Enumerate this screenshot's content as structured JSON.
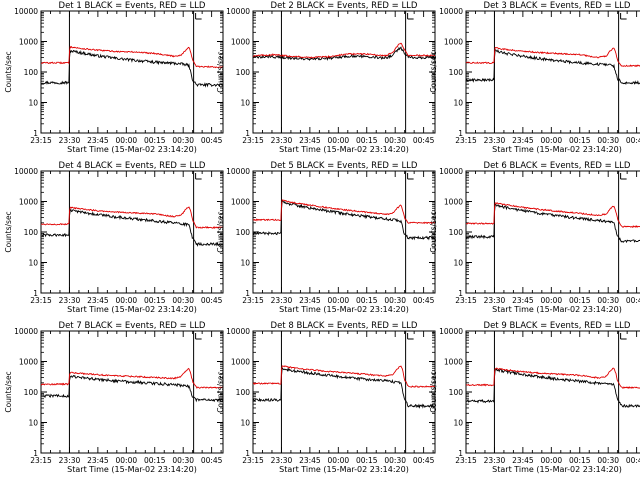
{
  "figure": {
    "x_tick_labels": [
      "23:15",
      "23:30",
      "23:45",
      "00:00",
      "00:15",
      "00:30",
      "00:45"
    ],
    "y_tick_labels": [
      "1",
      "10",
      "100",
      "1000",
      "10000"
    ],
    "x_label": "Start Time (15-Mar-02 23:14:20)",
    "y_label": "Counts/sec",
    "colors": {
      "events": "#000000",
      "lld": "#e00000"
    }
  },
  "chart_data": [
    {
      "type": "line",
      "title": "Det 1 BLACK = Events, RED = LLD",
      "xlabel": "Start Time (15-Mar-02 23:14:20)",
      "ylabel": "Counts/sec",
      "x_unit": "minutes after 23:15",
      "xlim": [
        0,
        96
      ],
      "ylim": [
        1,
        10000
      ],
      "y_scale": "log",
      "markers_at": [
        15,
        80.5
      ],
      "series": [
        {
          "name": "Events",
          "color": "#000000",
          "x": [
            0,
            14.9,
            15.1,
            20,
            30,
            40,
            50,
            60,
            65,
            70,
            75,
            78,
            80,
            82,
            96
          ],
          "y": [
            45,
            45,
            500,
            440,
            340,
            280,
            240,
            210,
            200,
            195,
            180,
            165,
            55,
            38,
            38
          ]
        },
        {
          "name": "LLD",
          "color": "#e00000",
          "x": [
            0,
            14.9,
            15.1,
            20,
            30,
            40,
            50,
            60,
            70,
            74,
            76,
            78,
            79,
            80,
            82,
            96
          ],
          "y": [
            200,
            200,
            680,
            600,
            520,
            470,
            450,
            410,
            330,
            360,
            500,
            650,
            450,
            240,
            150,
            145
          ]
        }
      ]
    },
    {
      "type": "line",
      "title": "Det 2 BLACK = Events, RED = LLD",
      "xlabel": "Start Time (15-Mar-02 23:14:20)",
      "ylabel": "Counts/sec",
      "x_unit": "minutes after 23:15",
      "xlim": [
        0,
        96
      ],
      "ylim": [
        1,
        10000
      ],
      "y_scale": "log",
      "markers_at": [
        15,
        80.5
      ],
      "series": [
        {
          "name": "Events",
          "color": "#000000",
          "x": [
            0,
            10,
            20,
            30,
            40,
            50,
            60,
            70,
            74,
            76,
            78,
            80,
            82,
            96
          ],
          "y": [
            300,
            320,
            290,
            260,
            280,
            330,
            330,
            290,
            370,
            520,
            620,
            420,
            300,
            300
          ]
        },
        {
          "name": "LLD",
          "color": "#e00000",
          "x": [
            0,
            10,
            20,
            30,
            40,
            50,
            60,
            70,
            74,
            76,
            78,
            80,
            82,
            96
          ],
          "y": [
            340,
            370,
            330,
            300,
            320,
            390,
            390,
            340,
            450,
            700,
            900,
            520,
            350,
            350
          ]
        }
      ]
    },
    {
      "type": "line",
      "title": "Det 3 BLACK = Events, RED = LLD",
      "xlabel": "Start Time (15-Mar-02 23:14:20)",
      "ylabel": "Counts/sec",
      "x_unit": "minutes after 23:15",
      "xlim": [
        0,
        96
      ],
      "ylim": [
        1,
        10000
      ],
      "y_scale": "log",
      "markers_at": [
        15,
        80.5
      ],
      "series": [
        {
          "name": "Events",
          "color": "#000000",
          "x": [
            0,
            14.9,
            15.1,
            20,
            30,
            40,
            50,
            60,
            70,
            75,
            78,
            80,
            82,
            96
          ],
          "y": [
            55,
            55,
            500,
            420,
            330,
            270,
            230,
            200,
            180,
            170,
            160,
            60,
            45,
            45
          ]
        },
        {
          "name": "LLD",
          "color": "#e00000",
          "x": [
            0,
            14.9,
            15.1,
            20,
            30,
            40,
            50,
            60,
            70,
            74,
            76,
            78,
            79,
            80,
            82,
            96
          ],
          "y": [
            200,
            200,
            620,
            560,
            480,
            430,
            400,
            370,
            300,
            340,
            480,
            620,
            420,
            230,
            160,
            160
          ]
        }
      ]
    },
    {
      "type": "line",
      "title": "Det 4 BLACK = Events, RED = LLD",
      "xlabel": "Start Time (15-Mar-02 23:14:20)",
      "ylabel": "Counts/sec",
      "x_unit": "minutes after 23:15",
      "xlim": [
        0,
        96
      ],
      "ylim": [
        1,
        10000
      ],
      "y_scale": "log",
      "markers_at": [
        15,
        80.5
      ],
      "series": [
        {
          "name": "Events",
          "color": "#000000",
          "x": [
            0,
            14.9,
            15.1,
            20,
            30,
            40,
            50,
            60,
            70,
            75,
            78,
            80,
            82,
            96
          ],
          "y": [
            80,
            80,
            520,
            460,
            370,
            310,
            270,
            230,
            200,
            185,
            170,
            60,
            40,
            40
          ]
        },
        {
          "name": "LLD",
          "color": "#e00000",
          "x": [
            0,
            14.9,
            15.1,
            20,
            30,
            40,
            50,
            60,
            70,
            74,
            76,
            78,
            79,
            80,
            82,
            96
          ],
          "y": [
            180,
            180,
            640,
            580,
            500,
            450,
            420,
            390,
            320,
            360,
            520,
            680,
            460,
            240,
            140,
            140
          ]
        }
      ]
    },
    {
      "type": "line",
      "title": "Det 5 BLACK = Events, RED = LLD",
      "xlabel": "Start Time (15-Mar-02 23:14:20)",
      "ylabel": "Counts/sec",
      "x_unit": "minutes after 23:15",
      "xlim": [
        0,
        96
      ],
      "ylim": [
        1,
        10000
      ],
      "y_scale": "log",
      "markers_at": [
        15,
        80.5
      ],
      "series": [
        {
          "name": "Events",
          "color": "#000000",
          "x": [
            0,
            14.9,
            15.1,
            20,
            30,
            40,
            50,
            60,
            70,
            75,
            78,
            80,
            82,
            96
          ],
          "y": [
            90,
            90,
            1000,
            820,
            620,
            480,
            390,
            320,
            270,
            250,
            230,
            80,
            65,
            65
          ]
        },
        {
          "name": "LLD",
          "color": "#e00000",
          "x": [
            0,
            14.9,
            15.1,
            20,
            30,
            40,
            50,
            60,
            70,
            74,
            76,
            78,
            79,
            80,
            82,
            96
          ],
          "y": [
            250,
            250,
            1100,
            950,
            760,
            620,
            520,
            440,
            380,
            420,
            600,
            780,
            520,
            280,
            200,
            200
          ]
        }
      ]
    },
    {
      "type": "line",
      "title": "Det 6 BLACK = Events, RED = LLD",
      "xlabel": "Start Time (15-Mar-02 23:14:20)",
      "ylabel": "Counts/sec",
      "x_unit": "minutes after 23:15",
      "xlim": [
        0,
        96
      ],
      "ylim": [
        1,
        10000
      ],
      "y_scale": "log",
      "markers_at": [
        15,
        80.5
      ],
      "series": [
        {
          "name": "Events",
          "color": "#000000",
          "x": [
            0,
            14.9,
            15.1,
            20,
            30,
            40,
            50,
            60,
            70,
            75,
            78,
            80,
            82,
            96
          ],
          "y": [
            70,
            70,
            800,
            660,
            500,
            400,
            330,
            280,
            240,
            220,
            200,
            70,
            50,
            50
          ]
        },
        {
          "name": "LLD",
          "color": "#e00000",
          "x": [
            0,
            14.9,
            15.1,
            20,
            30,
            40,
            50,
            60,
            70,
            74,
            76,
            78,
            79,
            80,
            82,
            96
          ],
          "y": [
            190,
            190,
            900,
            800,
            640,
            540,
            470,
            410,
            350,
            390,
            560,
            720,
            480,
            260,
            150,
            150
          ]
        }
      ]
    },
    {
      "type": "line",
      "title": "Det 7 BLACK = Events, RED = LLD",
      "xlabel": "Start Time (15-Mar-02 23:14:20)",
      "ylabel": "Counts/sec",
      "x_unit": "minutes after 23:15",
      "xlim": [
        0,
        96
      ],
      "ylim": [
        1,
        10000
      ],
      "y_scale": "log",
      "markers_at": [
        15,
        80.5
      ],
      "series": [
        {
          "name": "Events",
          "color": "#000000",
          "x": [
            0,
            14.9,
            15.1,
            20,
            30,
            40,
            50,
            60,
            70,
            75,
            78,
            80,
            82,
            96
          ],
          "y": [
            75,
            75,
            330,
            300,
            260,
            230,
            210,
            190,
            175,
            165,
            155,
            65,
            55,
            55
          ]
        },
        {
          "name": "LLD",
          "color": "#e00000",
          "x": [
            0,
            14.9,
            15.1,
            20,
            30,
            40,
            50,
            60,
            70,
            74,
            76,
            78,
            79,
            80,
            82,
            96
          ],
          "y": [
            180,
            180,
            440,
            410,
            370,
            340,
            320,
            300,
            280,
            320,
            460,
            600,
            400,
            220,
            140,
            140
          ]
        }
      ]
    },
    {
      "type": "line",
      "title": "Det 8 BLACK = Events, RED = LLD",
      "xlabel": "Start Time (15-Mar-02 23:14:20)",
      "ylabel": "Counts/sec",
      "x_unit": "minutes after 23:15",
      "xlim": [
        0,
        96
      ],
      "ylim": [
        1,
        10000
      ],
      "y_scale": "log",
      "markers_at": [
        15,
        80.5
      ],
      "series": [
        {
          "name": "Events",
          "color": "#000000",
          "x": [
            0,
            14.9,
            15.1,
            20,
            30,
            40,
            50,
            60,
            70,
            75,
            78,
            80,
            82,
            96
          ],
          "y": [
            55,
            55,
            600,
            520,
            420,
            350,
            300,
            260,
            230,
            215,
            200,
            55,
            35,
            35
          ]
        },
        {
          "name": "LLD",
          "color": "#e00000",
          "x": [
            0,
            14.9,
            15.1,
            20,
            30,
            40,
            50,
            60,
            70,
            74,
            76,
            78,
            79,
            80,
            82,
            96
          ],
          "y": [
            190,
            190,
            720,
            640,
            540,
            470,
            420,
            380,
            330,
            380,
            560,
            740,
            500,
            250,
            150,
            150
          ]
        }
      ]
    },
    {
      "type": "line",
      "title": "Det 9 BLACK = Events, RED = LLD",
      "xlabel": "Start Time (15-Mar-02 23:14:20)",
      "ylabel": "Counts/sec",
      "x_unit": "minutes after 23:15",
      "xlim": [
        0,
        96
      ],
      "ylim": [
        1,
        10000
      ],
      "y_scale": "log",
      "markers_at": [
        15,
        80.5
      ],
      "series": [
        {
          "name": "Events",
          "color": "#000000",
          "x": [
            0,
            14.9,
            15.1,
            20,
            30,
            40,
            50,
            60,
            70,
            75,
            78,
            80,
            82,
            96
          ],
          "y": [
            50,
            50,
            560,
            480,
            380,
            310,
            260,
            225,
            195,
            180,
            170,
            55,
            35,
            35
          ]
        },
        {
          "name": "LLD",
          "color": "#e00000",
          "x": [
            0,
            14.9,
            15.1,
            20,
            30,
            40,
            50,
            60,
            70,
            74,
            76,
            78,
            79,
            80,
            82,
            96
          ],
          "y": [
            170,
            170,
            600,
            540,
            460,
            410,
            380,
            350,
            290,
            330,
            480,
            620,
            420,
            220,
            140,
            140
          ]
        }
      ]
    }
  ]
}
